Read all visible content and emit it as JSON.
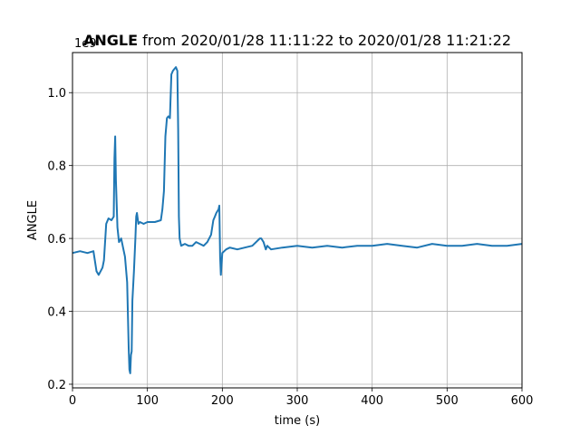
{
  "chart_data": {
    "type": "line",
    "title_bold": "ANGLE",
    "title_rest": " from 2020/01/28 11:11:22 to 2020/01/28 11:21:22",
    "xlabel": "time (s)",
    "ylabel": "ANGLE",
    "offset_text": "1e9",
    "xlim": [
      0,
      600
    ],
    "ylim": [
      0.19,
      1.11
    ],
    "xticks": [
      0,
      100,
      200,
      300,
      400,
      500,
      600
    ],
    "yticks": [
      0.2,
      0.4,
      0.6,
      0.8,
      1.0
    ],
    "ytick_labels": [
      "0.2",
      "0.4",
      "0.6",
      "0.8",
      "1.0"
    ],
    "grid": true,
    "series_color": "#1f77b4",
    "series": [
      {
        "x": [
          0,
          10,
          20,
          28,
          32,
          35,
          40,
          42,
          45,
          48,
          52,
          55,
          56,
          57,
          58,
          60,
          62,
          65,
          68,
          70,
          73,
          75,
          76,
          77,
          78,
          79,
          80,
          82,
          84,
          85,
          86,
          88,
          90,
          95,
          100,
          110,
          118,
          120,
          122,
          124,
          126,
          128,
          130,
          132,
          134,
          136,
          138,
          140,
          141,
          142,
          143,
          145,
          150,
          155,
          160,
          165,
          170,
          175,
          180,
          185,
          188,
          190,
          192,
          195,
          196,
          197,
          198,
          200,
          205,
          210,
          220,
          230,
          240,
          250,
          252,
          255,
          258,
          260,
          265,
          280,
          300,
          320,
          340,
          360,
          380,
          400,
          420,
          440,
          460,
          480,
          500,
          520,
          540,
          560,
          580,
          600
        ],
        "y": [
          0.56,
          0.565,
          0.56,
          0.565,
          0.51,
          0.5,
          0.52,
          0.54,
          0.64,
          0.655,
          0.65,
          0.66,
          0.82,
          0.88,
          0.76,
          0.63,
          0.59,
          0.6,
          0.57,
          0.55,
          0.48,
          0.3,
          0.24,
          0.23,
          0.28,
          0.29,
          0.43,
          0.51,
          0.6,
          0.66,
          0.67,
          0.64,
          0.645,
          0.64,
          0.645,
          0.645,
          0.65,
          0.68,
          0.73,
          0.88,
          0.93,
          0.935,
          0.93,
          1.05,
          1.06,
          1.065,
          1.07,
          1.06,
          0.9,
          0.66,
          0.6,
          0.58,
          0.585,
          0.58,
          0.58,
          0.59,
          0.585,
          0.58,
          0.59,
          0.61,
          0.65,
          0.66,
          0.67,
          0.68,
          0.69,
          0.55,
          0.5,
          0.56,
          0.57,
          0.575,
          0.57,
          0.575,
          0.58,
          0.6,
          0.6,
          0.59,
          0.57,
          0.58,
          0.57,
          0.575,
          0.58,
          0.575,
          0.58,
          0.575,
          0.58,
          0.58,
          0.585,
          0.58,
          0.575,
          0.585,
          0.58,
          0.58,
          0.585,
          0.58,
          0.58,
          0.585
        ]
      }
    ]
  }
}
